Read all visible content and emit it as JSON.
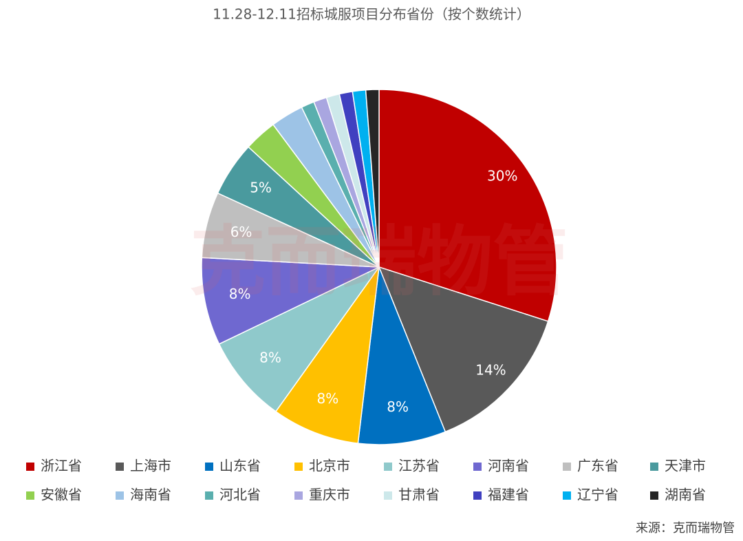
{
  "chart_data": {
    "type": "pie",
    "title": "11.28-12.11招标城服项目分布省份（按个数统计）",
    "categories": [
      "浙江省",
      "上海市",
      "山东省",
      "北京市",
      "江苏省",
      "河南省",
      "广东省",
      "天津市",
      "安徽省",
      "海南省",
      "河北省",
      "重庆市",
      "甘肃省",
      "福建省",
      "辽宁省",
      "湖南省"
    ],
    "values": [
      30,
      14,
      8,
      8,
      8,
      8,
      6,
      5,
      3,
      3,
      1.2,
      1.2,
      1.2,
      1.2,
      1.2,
      1.2
    ],
    "value_labels": [
      "30%",
      "14%",
      "8%",
      "8%",
      "8%",
      "8%",
      "6%",
      "5%",
      null,
      null,
      null,
      null,
      null,
      null,
      null,
      null
    ],
    "colors": [
      "#c00000",
      "#595959",
      "#0070c0",
      "#ffc000",
      "#8fc9cb",
      "#6f68d0",
      "#bfbfbf",
      "#4a9a9e",
      "#92d050",
      "#9dc3e6",
      "#5aafae",
      "#a9a6e0",
      "#cde8ea",
      "#4040c0",
      "#00b0f0",
      "#262626"
    ],
    "source": "来源：克而瑞物管",
    "watermark": "克而瑞物管"
  }
}
